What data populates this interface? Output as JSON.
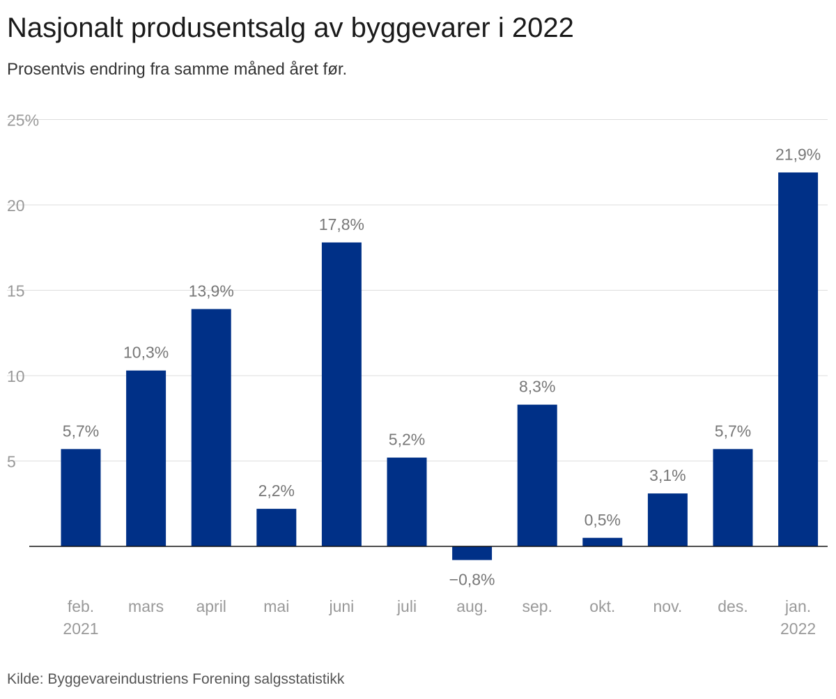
{
  "title": "Nasjonalt produsentsalg av byggevarer i 2022",
  "subtitle": "Prosentvis endring fra samme måned året før.",
  "source": "Kilde: Byggevareindustriens Forening salgsstatistikk",
  "colors": {
    "bar": "#003087",
    "grid": "#dddddd",
    "axis": "#111111",
    "tick_text": "#999999",
    "label_text": "#777777"
  },
  "chart_data": {
    "type": "bar",
    "categories": [
      [
        "feb.",
        "2021"
      ],
      [
        "mars"
      ],
      [
        "april"
      ],
      [
        "mai"
      ],
      [
        "juni"
      ],
      [
        "juli"
      ],
      [
        "aug."
      ],
      [
        "sep."
      ],
      [
        "okt."
      ],
      [
        "nov."
      ],
      [
        "des."
      ],
      [
        "jan.",
        "2022"
      ]
    ],
    "values": [
      5.7,
      10.3,
      13.9,
      2.2,
      17.8,
      5.2,
      -0.8,
      8.3,
      0.5,
      3.1,
      5.7,
      21.9
    ],
    "data_labels": [
      "5,7%",
      "10,3%",
      "13,9%",
      "2,2%",
      "17,8%",
      "5,2%",
      "−0,8%",
      "8,3%",
      "0,5%",
      "3,1%",
      "5,7%",
      "21,9%"
    ],
    "yticks": [
      {
        "value": 5,
        "label": "5"
      },
      {
        "value": 10,
        "label": "10"
      },
      {
        "value": 15,
        "label": "15"
      },
      {
        "value": 20,
        "label": "20"
      },
      {
        "value": 25,
        "label": "25%"
      }
    ],
    "ylim": [
      0,
      25
    ],
    "grid": true,
    "xlabel": "",
    "ylabel": ""
  }
}
